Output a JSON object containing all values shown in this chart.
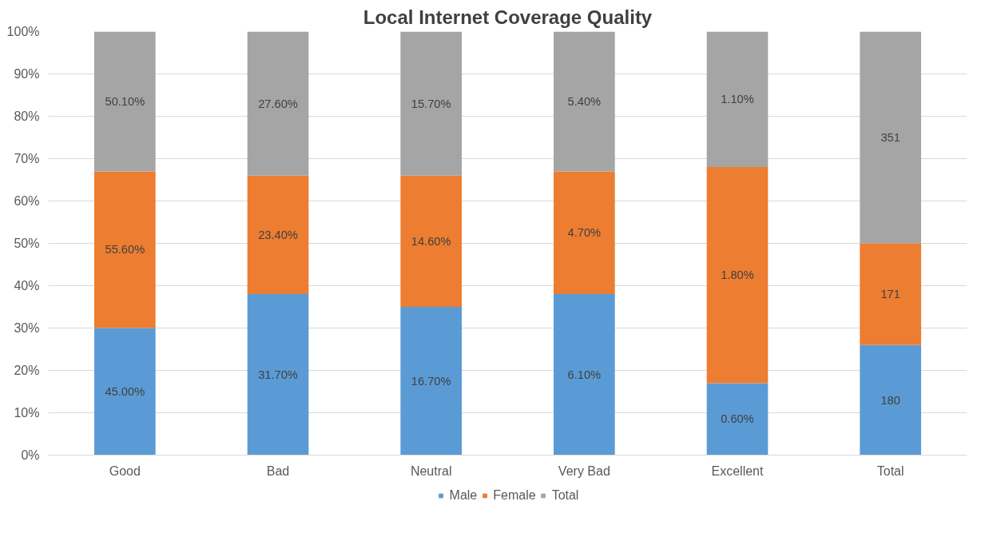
{
  "chart_data": {
    "type": "bar",
    "title": "Local Internet Coverage Quality",
    "stacked": true,
    "categories": [
      "Good",
      "Bad",
      "Neutral",
      "Very Bad",
      "Excellent",
      "Total"
    ],
    "series": [
      {
        "name": "Male",
        "color": "#5b9bd5",
        "values": [
          30,
          38,
          35,
          38,
          17,
          26
        ]
      },
      {
        "name": "Female",
        "color": "#ed7d31",
        "values": [
          37,
          28,
          31,
          29,
          51,
          24
        ]
      },
      {
        "name": "Total",
        "color": "#a5a5a5",
        "values": [
          33,
          34,
          34,
          33,
          32,
          50
        ]
      }
    ],
    "annotations": [
      "45.00%",
      "55.60%",
      "50.10%",
      "31.70%",
      "23.40%",
      "27.60%",
      "16.70%",
      "14.60%",
      "15.70%",
      "6.10%",
      "4.70%",
      "5.40%",
      "0.60%",
      "1.80%",
      "1.10%",
      "180",
      "171",
      "351"
    ],
    "ylim": [
      0,
      100
    ],
    "yticks": [
      {
        "value": 0,
        "label": "0%"
      },
      {
        "value": 10,
        "label": "10%"
      },
      {
        "value": 20,
        "label": "20%"
      },
      {
        "value": 30,
        "label": "30%"
      },
      {
        "value": 40,
        "label": "40%"
      },
      {
        "value": 50,
        "label": "50%"
      },
      {
        "value": 60,
        "label": "60%"
      },
      {
        "value": 70,
        "label": "70%"
      },
      {
        "value": 80,
        "label": "80%"
      },
      {
        "value": 90,
        "label": "90%"
      },
      {
        "value": 100,
        "label": "100%"
      }
    ],
    "grid": "y",
    "legend": "bottom"
  }
}
